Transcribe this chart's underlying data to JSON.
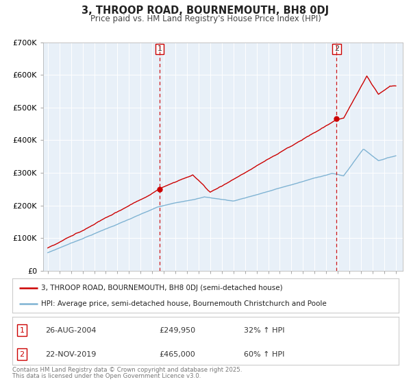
{
  "title": "3, THROOP ROAD, BOURNEMOUTH, BH8 0DJ",
  "subtitle": "Price paid vs. HM Land Registry's House Price Index (HPI)",
  "bg_color": "#ffffff",
  "plot_bg_color": "#e8f0f8",
  "red_color": "#cc0000",
  "blue_color": "#7fb3d3",
  "dashed_color": "#cc0000",
  "ylim": [
    0,
    700000
  ],
  "yticks": [
    0,
    100000,
    200000,
    300000,
    400000,
    500000,
    600000,
    700000
  ],
  "ytick_labels": [
    "£0",
    "£100K",
    "£200K",
    "£300K",
    "£400K",
    "£500K",
    "£600K",
    "£700K"
  ],
  "x_start_year": 1995,
  "x_end_year": 2025,
  "sale1_year": 2004.65,
  "sale1_price": 249950,
  "sale1_label": "1",
  "sale1_date": "26-AUG-2004",
  "sale1_price_str": "£249,950",
  "sale1_pct": "32% ↑ HPI",
  "sale2_year": 2019.9,
  "sale2_price": 465000,
  "sale2_label": "2",
  "sale2_date": "22-NOV-2019",
  "sale2_price_str": "£465,000",
  "sale2_pct": "60% ↑ HPI",
  "legend1": "3, THROOP ROAD, BOURNEMOUTH, BH8 0DJ (semi-detached house)",
  "legend2": "HPI: Average price, semi-detached house, Bournemouth Christchurch and Poole",
  "footer_line1": "Contains HM Land Registry data © Crown copyright and database right 2025.",
  "footer_line2": "This data is licensed under the Open Government Licence v3.0.",
  "grid_color": "#ffffff",
  "label_box_color": "#cc0000"
}
